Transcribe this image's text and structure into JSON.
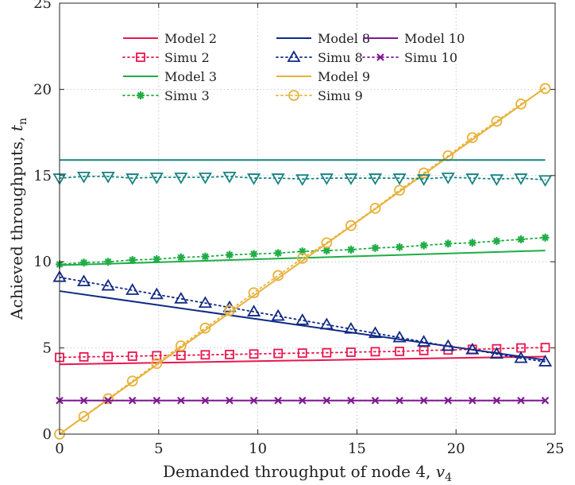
{
  "chart_data": {
    "type": "line",
    "xlabel": "Demanded throughput of node 4, ",
    "xlabel_var": "v",
    "xlabel_sub": "4",
    "ylabel": "Achieved throughputs, ",
    "ylabel_var": "t",
    "ylabel_sub": "n",
    "xlim": [
      0,
      25
    ],
    "ylim": [
      0,
      25
    ],
    "xticks": [
      0,
      5,
      10,
      15,
      20,
      25
    ],
    "yticks": [
      0,
      5,
      10,
      15,
      20,
      25
    ],
    "grid": true,
    "legend_position": "top-center",
    "x": [
      0,
      1.225,
      2.45,
      3.675,
      4.9,
      6.125,
      7.35,
      8.575,
      9.8,
      11.025,
      12.25,
      13.475,
      14.7,
      15.925,
      17.15,
      18.375,
      19.6,
      20.825,
      22.05,
      23.275,
      24.5
    ],
    "series": [
      {
        "name": "Model 2",
        "style": "line",
        "color": "#e8174e",
        "x": [
          0,
          24.5
        ],
        "values": [
          4.05,
          4.5
        ]
      },
      {
        "name": "Simu 2",
        "style": "dotted-marker",
        "marker": "square",
        "color": "#e8174e",
        "values": [
          4.45,
          4.48,
          4.5,
          4.52,
          4.55,
          4.57,
          4.6,
          4.62,
          4.65,
          4.68,
          4.7,
          4.72,
          4.75,
          4.78,
          4.8,
          4.85,
          4.88,
          4.92,
          4.95,
          5.0,
          5.02
        ]
      },
      {
        "name": "Model 3",
        "style": "line",
        "color": "#1fad45",
        "x": [
          0,
          24.5
        ],
        "values": [
          9.8,
          10.65
        ]
      },
      {
        "name": "Simu 3",
        "style": "dotted-marker",
        "marker": "asterisk",
        "color": "#1fad45",
        "values": [
          9.85,
          9.95,
          10.0,
          10.1,
          10.15,
          10.25,
          10.3,
          10.4,
          10.45,
          10.5,
          10.6,
          10.65,
          10.7,
          10.8,
          10.85,
          10.95,
          11.05,
          11.1,
          11.2,
          11.3,
          11.4
        ]
      },
      {
        "name": "Model 8",
        "style": "line",
        "color": "#102a85",
        "x": [
          0,
          24.5
        ],
        "values": [
          8.3,
          4.3
        ]
      },
      {
        "name": "Simu 8",
        "style": "dotted-marker",
        "marker": "triangle-up",
        "color": "#102a85",
        "values": [
          9.1,
          8.85,
          8.6,
          8.35,
          8.1,
          7.85,
          7.6,
          7.35,
          7.1,
          6.85,
          6.6,
          6.35,
          6.1,
          5.85,
          5.6,
          5.35,
          5.1,
          4.9,
          4.65,
          4.4,
          4.2
        ]
      },
      {
        "name": "Model 9",
        "style": "line",
        "color": "#e8b23c",
        "x": [
          0,
          24.5
        ],
        "values": [
          0,
          20.1
        ]
      },
      {
        "name": "Simu 9",
        "style": "dotted-marker",
        "marker": "circle",
        "color": "#e8b23c",
        "values": [
          0,
          1.02,
          2.05,
          3.08,
          4.1,
          5.12,
          6.15,
          7.17,
          8.2,
          9.2,
          10.2,
          11.1,
          12.1,
          13.1,
          14.15,
          15.15,
          16.15,
          17.2,
          18.15,
          19.15,
          20.05
        ]
      },
      {
        "name": "Model 10",
        "style": "line",
        "color": "#7d1a91",
        "x": [
          0,
          24.5
        ],
        "values": [
          1.95,
          1.95
        ]
      },
      {
        "name": "Simu 10",
        "style": "dotted-marker",
        "marker": "x",
        "color": "#7d1a91",
        "values": [
          1.95,
          1.95,
          1.95,
          1.95,
          1.95,
          1.95,
          1.95,
          1.95,
          1.95,
          1.95,
          1.95,
          1.95,
          1.95,
          1.95,
          1.95,
          1.95,
          1.95,
          1.95,
          1.95,
          1.95,
          1.95
        ]
      },
      {
        "style": "line",
        "color": "#178482",
        "x": [
          0,
          24.5
        ],
        "values": [
          15.9,
          15.9
        ]
      },
      {
        "style": "dotted-marker",
        "marker": "triangle-down",
        "color": "#178482",
        "values": [
          14.85,
          14.95,
          14.95,
          14.85,
          14.9,
          14.9,
          14.9,
          14.95,
          14.85,
          14.85,
          14.8,
          14.85,
          14.85,
          14.85,
          14.85,
          14.8,
          14.9,
          14.85,
          14.8,
          14.85,
          14.75
        ]
      }
    ],
    "legend_order": [
      "Model 2",
      "Model 8",
      "Model 10",
      "Simu 2",
      "Simu 8",
      "Simu 10",
      "Model 3",
      "Model 9",
      "Simu 3",
      "Simu 9"
    ]
  }
}
